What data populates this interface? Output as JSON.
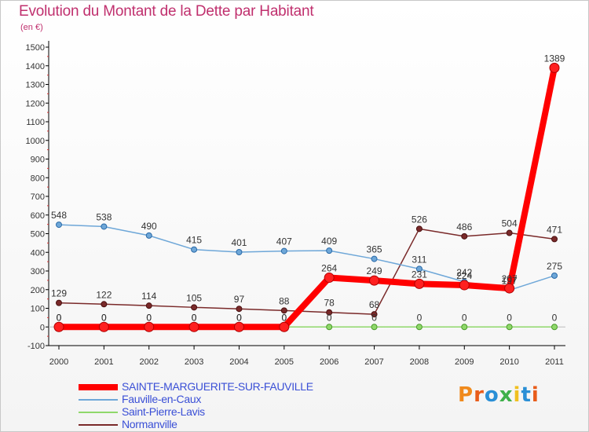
{
  "header": {
    "title": "Evolution du Montant de la Dette par Habitant",
    "unit": "(en €)"
  },
  "logo": {
    "text": "Proxiti",
    "colors": [
      "#f08a1c",
      "#e85c1a",
      "#2a8fd6",
      "#3fb04a",
      "#f0c020",
      "#2a8fd6",
      "#e85c1a"
    ]
  },
  "chart_data": {
    "type": "line",
    "x": [
      2000,
      2001,
      2002,
      2003,
      2004,
      2005,
      2006,
      2007,
      2008,
      2009,
      2010,
      2011
    ],
    "ylim": [
      -100,
      1500
    ],
    "yticks": [
      -100,
      0,
      100,
      200,
      300,
      400,
      500,
      600,
      700,
      800,
      900,
      1000,
      1100,
      1200,
      1300,
      1400,
      1500
    ],
    "grid": false,
    "legend_position": "bottom-left",
    "series": [
      {
        "name": "SAINTE-MARGUERITE-SUR-FAUVILLE",
        "color": "#ff0000",
        "values": [
          0,
          0,
          0,
          0,
          0,
          0,
          264,
          249,
          231,
          224,
          207,
          1389
        ],
        "labels": [
          "0",
          "0",
          "0",
          "0",
          "0",
          "0",
          "264",
          "249",
          "231",
          "224",
          "207",
          "1389"
        ]
      },
      {
        "name": "Fauville-en-Caux",
        "color": "#6ea7d8",
        "values": [
          548,
          538,
          490,
          415,
          401,
          407,
          409,
          365,
          311,
          242,
          197,
          275
        ],
        "labels": [
          "548",
          "538",
          "490",
          "415",
          "401",
          "407",
          "409",
          "365",
          "311",
          "242",
          "197",
          "275"
        ]
      },
      {
        "name": "Saint-Pierre-Lavis",
        "color": "#8fd86a",
        "values": [
          0,
          0,
          0,
          0,
          0,
          0,
          0,
          0,
          0,
          0,
          0,
          0
        ],
        "labels": [
          "0",
          "0",
          "0",
          "0",
          "0",
          "0",
          "0",
          "0",
          "0",
          "0",
          "0",
          "0"
        ]
      },
      {
        "name": "Normanville",
        "color": "#7a2a2a",
        "values": [
          129,
          122,
          114,
          105,
          97,
          88,
          78,
          68,
          526,
          486,
          504,
          471
        ],
        "labels": [
          "129",
          "122",
          "114",
          "105",
          "97",
          "88",
          "78",
          "68",
          "526",
          "486",
          "504",
          "471"
        ]
      }
    ]
  }
}
